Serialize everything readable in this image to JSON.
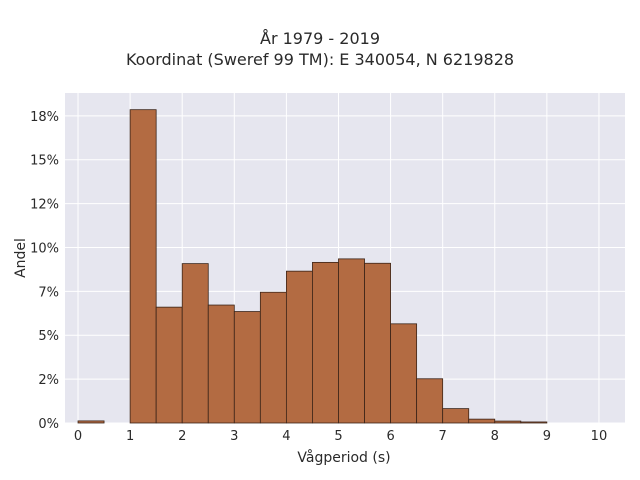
{
  "chart_data": {
    "type": "bar",
    "title": "År 1979 - 2019",
    "subtitle": "Koordinat (Sweref 99 TM): E 340054, N 6219828",
    "xlabel": "Vågperiod (s)",
    "ylabel": "Andel",
    "xlim": [
      -0.25,
      10.5
    ],
    "ylim": [
      0,
      0.188
    ],
    "x_ticks": [
      0,
      1,
      2,
      3,
      4,
      5,
      6,
      7,
      8,
      9,
      10
    ],
    "x_tick_labels": [
      "0",
      "1",
      "2",
      "3",
      "4",
      "5",
      "6",
      "7",
      "8",
      "9",
      "10"
    ],
    "y_ticks": [
      0,
      0.025,
      0.05,
      0.075,
      0.1,
      0.125,
      0.15,
      0.175
    ],
    "y_tick_labels": [
      "0%",
      "2%",
      "5%",
      "7%",
      "10%",
      "12%",
      "15%",
      "18%"
    ],
    "bin_width": 0.5,
    "bins": [
      {
        "x0": 0.0,
        "value": 0.0012
      },
      {
        "x0": 1.0,
        "value": 0.1785
      },
      {
        "x0": 1.5,
        "value": 0.066
      },
      {
        "x0": 2.0,
        "value": 0.0908
      },
      {
        "x0": 2.5,
        "value": 0.0672
      },
      {
        "x0": 3.0,
        "value": 0.0635
      },
      {
        "x0": 3.5,
        "value": 0.0745
      },
      {
        "x0": 4.0,
        "value": 0.0865
      },
      {
        "x0": 4.5,
        "value": 0.0915
      },
      {
        "x0": 5.0,
        "value": 0.0935
      },
      {
        "x0": 5.5,
        "value": 0.091
      },
      {
        "x0": 6.0,
        "value": 0.0565
      },
      {
        "x0": 6.5,
        "value": 0.0252
      },
      {
        "x0": 7.0,
        "value": 0.0082
      },
      {
        "x0": 7.5,
        "value": 0.0022
      },
      {
        "x0": 8.0,
        "value": 0.0011
      },
      {
        "x0": 8.5,
        "value": 0.0006
      }
    ],
    "grid": true,
    "colors": {
      "bar_fill": "#b36b42",
      "bar_stroke": "#3b2418",
      "plot_background": "#e6e6ef",
      "grid": "#ffffff"
    }
  }
}
